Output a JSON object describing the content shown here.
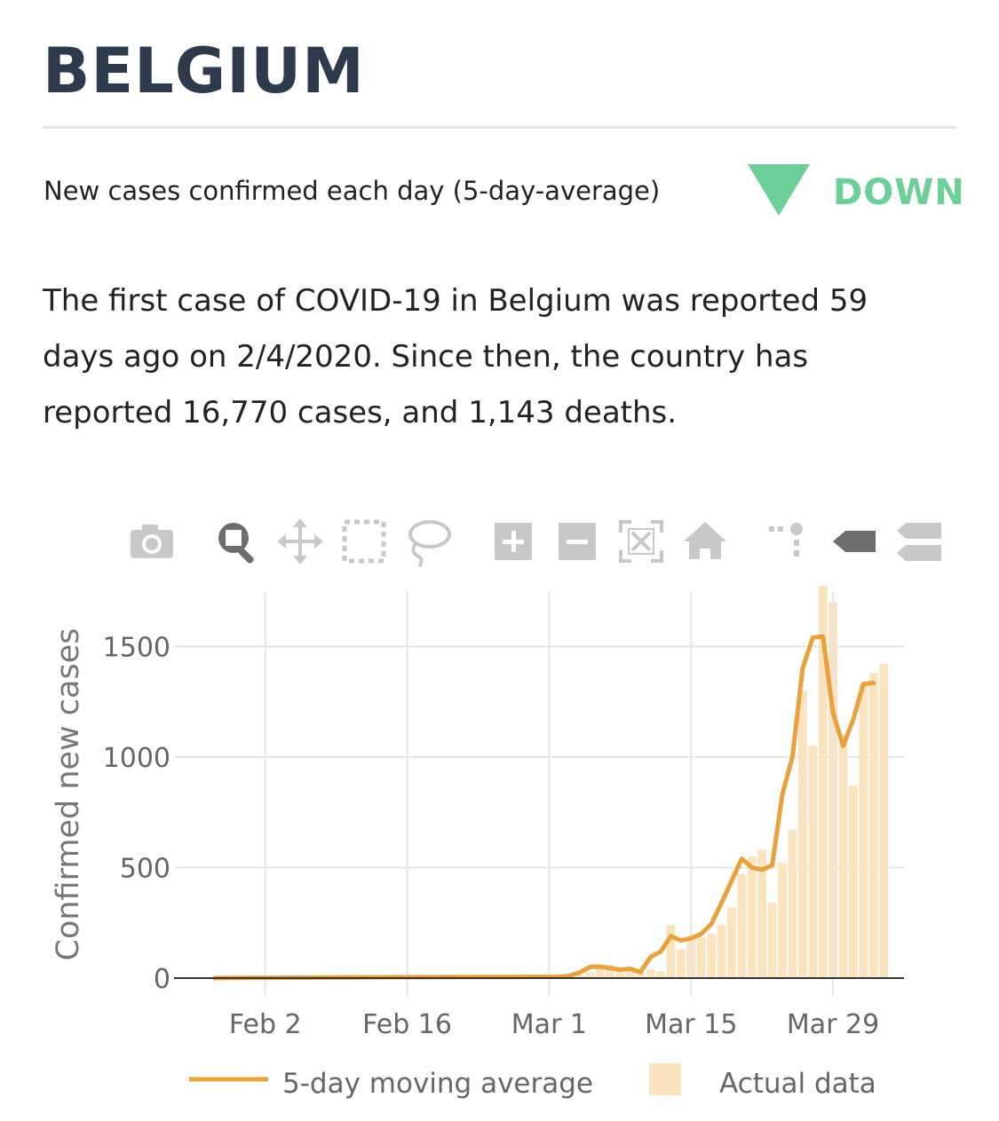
{
  "page": {
    "title": "BELGIUM",
    "subtitle": "New cases confirmed each day (5-day-average)",
    "trend": {
      "label": "DOWN",
      "icon": "down-triangle-icon",
      "color": "#6ccf98"
    },
    "summary": "The first case of COVID-19 in Belgium was reported 59 days ago on 2/4/2020. Since then, the country has reported 16,770 cases, and 1,143 deaths."
  },
  "toolbar": {
    "buttons": [
      {
        "icon": "camera-icon",
        "active": false
      },
      {
        "icon": "zoom-icon",
        "active": true
      },
      {
        "icon": "pan-icon",
        "active": false
      },
      {
        "icon": "box-select-icon",
        "active": false
      },
      {
        "icon": "lasso-select-icon",
        "active": false
      },
      {
        "icon": "zoom-in-icon",
        "active": false
      },
      {
        "icon": "zoom-out-icon",
        "active": false
      },
      {
        "icon": "autoscale-icon",
        "active": false
      },
      {
        "icon": "home-icon",
        "active": false
      },
      {
        "icon": "spike-lines-icon",
        "active": false
      },
      {
        "icon": "hover-closest-icon",
        "active": true
      },
      {
        "icon": "hover-compare-icon",
        "active": false
      }
    ]
  },
  "chart_data": {
    "type": "bar",
    "ylabel": "Confirmed new cases",
    "xlabel": "",
    "ylim": [
      0,
      1750
    ],
    "yticks": [
      0,
      500,
      1000,
      1500
    ],
    "xticks": [
      {
        "label": "Feb 2",
        "date": "2020-02-02"
      },
      {
        "label": "Feb 16",
        "date": "2020-02-16"
      },
      {
        "label": "Mar 1",
        "date": "2020-03-01"
      },
      {
        "label": "Mar 15",
        "date": "2020-03-15"
      },
      {
        "label": "Mar 29",
        "date": "2020-03-29"
      }
    ],
    "x_start": "2020-01-24",
    "x_end": "2020-04-05",
    "grid": true,
    "legend": "bottom",
    "series": [
      {
        "name": "Actual data",
        "kind": "bar",
        "color": "#fae3bf",
        "dates": [
          "2020-03-03",
          "2020-03-04",
          "2020-03-05",
          "2020-03-06",
          "2020-03-07",
          "2020-03-08",
          "2020-03-09",
          "2020-03-10",
          "2020-03-11",
          "2020-03-12",
          "2020-03-13",
          "2020-03-14",
          "2020-03-15",
          "2020-03-16",
          "2020-03-17",
          "2020-03-18",
          "2020-03-19",
          "2020-03-20",
          "2020-03-21",
          "2020-03-22",
          "2020-03-23",
          "2020-03-24",
          "2020-03-25",
          "2020-03-26",
          "2020-03-27",
          "2020-03-28",
          "2020-03-29",
          "2020-03-30",
          "2020-03-31",
          "2020-04-01",
          "2020-04-02",
          "2020-04-03"
        ],
        "values": [
          5,
          13,
          27,
          60,
          62,
          40,
          30,
          28,
          40,
          30,
          240,
          130,
          190,
          185,
          200,
          240,
          320,
          470,
          550,
          580,
          340,
          520,
          670,
          1300,
          1050,
          1850,
          1700,
          1100,
          870,
          1330,
          1380,
          1420
        ]
      },
      {
        "name": "5-day moving average",
        "kind": "line",
        "color": "#eba13b",
        "dates": [
          "2020-01-28",
          "2020-02-05",
          "2020-02-15",
          "2020-02-25",
          "2020-03-02",
          "2020-03-03",
          "2020-03-04",
          "2020-03-05",
          "2020-03-06",
          "2020-03-07",
          "2020-03-08",
          "2020-03-09",
          "2020-03-10",
          "2020-03-11",
          "2020-03-12",
          "2020-03-13",
          "2020-03-14",
          "2020-03-15",
          "2020-03-16",
          "2020-03-17",
          "2020-03-18",
          "2020-03-19",
          "2020-03-20",
          "2020-03-21",
          "2020-03-22",
          "2020-03-23",
          "2020-03-24",
          "2020-03-25",
          "2020-03-26",
          "2020-03-27",
          "2020-03-28",
          "2020-03-29",
          "2020-03-30",
          "2020-03-31",
          "2020-04-01",
          "2020-04-02"
        ],
        "values": [
          0,
          2,
          4,
          5,
          6,
          10,
          25,
          50,
          52,
          45,
          38,
          42,
          27,
          95,
          120,
          190,
          170,
          180,
          200,
          245,
          340,
          440,
          540,
          500,
          490,
          510,
          830,
          1000,
          1400,
          1540,
          1545,
          1200,
          1050,
          1170,
          1330,
          1335
        ]
      }
    ]
  }
}
